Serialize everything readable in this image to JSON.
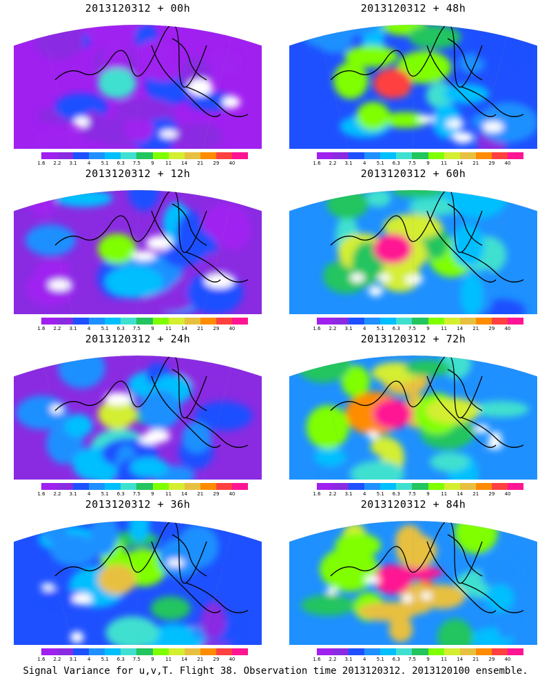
{
  "panels": [
    {
      "title": "2013120312 + 00h",
      "intensity": 0.15
    },
    {
      "title": "2013120312 + 48h",
      "intensity": 0.62
    },
    {
      "title": "2013120312 + 12h",
      "intensity": 0.3
    },
    {
      "title": "2013120312 + 60h",
      "intensity": 0.68
    },
    {
      "title": "2013120312 + 24h",
      "intensity": 0.4
    },
    {
      "title": "2013120312 + 72h",
      "intensity": 0.76
    },
    {
      "title": "2013120312 + 36h",
      "intensity": 0.48
    },
    {
      "title": "2013120312 + 84h",
      "intensity": 0.85
    }
  ],
  "colorbar": {
    "labels": [
      "1.6",
      "2.2",
      "3.1",
      "4",
      "5.1",
      "6.3",
      "7.5",
      "9",
      "11",
      "14",
      "21",
      "29",
      "40"
    ],
    "colors": [
      "#a020f0",
      "#8a2be2",
      "#1e50ff",
      "#1e90ff",
      "#00bfff",
      "#40e0d0",
      "#22c55e",
      "#7fff00",
      "#d4ee30",
      "#e8c040",
      "#ff8c00",
      "#ff4040",
      "#ff1493"
    ]
  },
  "footer": "Signal Variance for u,v,T. Flight 38. Observation time 2013120312. 2013120100 ensemble."
}
